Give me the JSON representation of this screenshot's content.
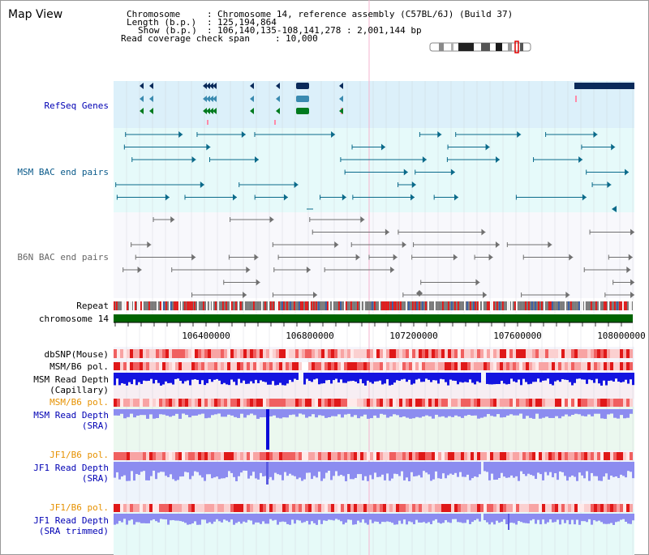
{
  "title": "Map View",
  "info": {
    "chromosome_label": "Chromosome",
    "chromosome_value": "Chromosome 14, reference assembly (C57BL/6J) (Build 37)",
    "length_label": "Length (b.p.)",
    "length_value": "125,194,864",
    "show_label": "Show (b.p.)",
    "show_value": "106,140,135-108,141,278 : 2,001,144 bp",
    "coverage_label": "Read coverage check span",
    "coverage_value": "10,000"
  },
  "tracks": {
    "refseq": "RefSeq Genes",
    "msm_bac": "MSM BAC end pairs",
    "b6n_bac": "B6N BAC end pairs",
    "repeat": "Repeat",
    "chromosome": "chromosome 14",
    "dbsnp": "dbSNP(Mouse)",
    "msm_b6_pol_1": "MSM/B6 pol.",
    "msm_depth_cap_1": "MSM Read Depth",
    "msm_depth_cap_2": "(Capillary)",
    "msm_b6_pol_2": "MSM/B6 pol.",
    "msm_depth_sra_1": "MSM Read Depth",
    "msm_depth_sra_2": "(SRA)",
    "jf1_b6_pol_1": "JF1/B6 pol.",
    "jf1_depth_sra_1": "JF1 Read Depth",
    "jf1_depth_sra_2": "(SRA)",
    "jf1_b6_pol_2": "JF1/B6 pol.",
    "jf1_depth_trim_1": "JF1 Read Depth",
    "jf1_depth_trim_2": "(SRA trimmed)"
  },
  "axis_ticks": [
    "106400000",
    "106800000",
    "107200000",
    "107600000",
    "108000000"
  ],
  "colors": {
    "refseq_bg": "#dcf0fa",
    "msm_bg": "#e6fafa",
    "b6n_bg": "#f8f8fc",
    "gene_dark": "#0a2a5a",
    "gene_mid": "#3a8ab0",
    "gene_green": "#007a1e",
    "msm_pair": "#0a6a8a",
    "b6n_pair": "#707070",
    "chromosome": "#006400",
    "label_blue": "#0000b4",
    "label_orange": "#e69100",
    "depth_blue": "#1414e0",
    "depth_light": "#8c8cf0"
  }
}
